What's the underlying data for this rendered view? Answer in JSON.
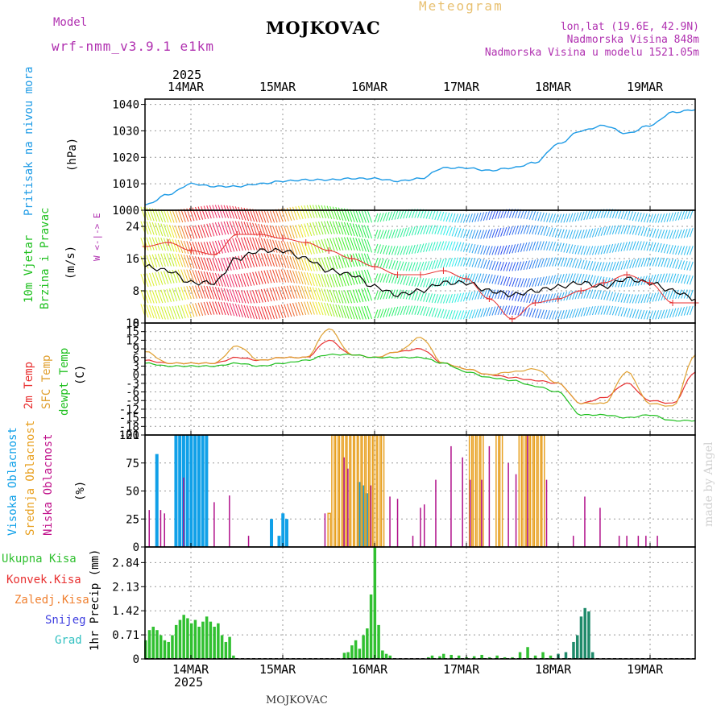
{
  "header": {
    "model_label": "Model",
    "model_name": "wrf-nmm_v3.9.1 e1km",
    "station": "MOJKOVAC",
    "product": "Meteogram",
    "lonlat": "lon,lat (19.6E, 42.9N)",
    "elevation": "Nadmorska Visina 848m",
    "model_elevation": "Nadmorska Visina u modelu 1521.05m",
    "footer_station": "MOJKOVAC",
    "credit": "made by Angel"
  },
  "colors": {
    "pressure": "#1e9be6",
    "temp2m": "#e83030",
    "sfc": "#e0a030",
    "dew": "#20c020",
    "high_cloud": "#10a0e8",
    "mid_cloud": "#e8a020",
    "low_cloud": "#b0108a",
    "precip": "#30c030",
    "title_magenta": "#b030b0"
  },
  "axes": {
    "year": "2025",
    "top_days": [
      "14MAR",
      "15MAR",
      "16MAR",
      "17MAR",
      "18MAR",
      "19MAR"
    ],
    "bottom_days": [
      "14MAR",
      "15MAR",
      "16MAR",
      "17MAR",
      "18MAR",
      "19MAR"
    ],
    "bottom_year": "2025"
  },
  "panels": {
    "pressure": {
      "label": "Pritisak na nivou mora",
      "unit": "(hPa)",
      "ticks": [
        "1040",
        "1030",
        "1020",
        "1010",
        "1000"
      ]
    },
    "wind": {
      "label1": "10m Vjetar",
      "label2": "Brzina i Pravac",
      "unit": "(m/s)",
      "ticks": [
        "24",
        "16",
        "8",
        "0"
      ],
      "compass": "W <-|-> E"
    },
    "temp": {
      "label_2m": "2m Temp",
      "label_sfc": "SFC Temp",
      "label_dew": "dewpt Temp",
      "unit": "(C)",
      "ticks": [
        "18",
        "15",
        "12",
        "9",
        "6",
        "3",
        "0",
        "-3",
        "-6",
        "-9",
        "-12",
        "-15",
        "-18",
        "-21"
      ]
    },
    "cloud": {
      "label_high": "Visoka Oblacnost",
      "label_mid": "Srednja Oblacnost",
      "label_low": "Niska Oblacnost",
      "unit": "(%)",
      "ticks": [
        "100",
        "75",
        "50",
        "25",
        "0"
      ]
    },
    "precip": {
      "legend": [
        "Ukupna Kisa",
        "Konvek.Kisa",
        "Zaledj.Kisa",
        "Snijeg",
        "Grad"
      ],
      "legend_colors": [
        "#30c030",
        "#e83030",
        "#f08030",
        "#4040e0",
        "#30c0c0"
      ],
      "unit": "1hr Precip (mm)",
      "ticks": [
        "2.84",
        "2.13",
        "1.42",
        "0.71",
        "0"
      ]
    }
  },
  "chart_data": [
    {
      "type": "line",
      "ylabel": "Pritisak na nivou mora (hPa)",
      "ylim": [
        1000,
        1042
      ],
      "x_hours": [
        0,
        6,
        12,
        18,
        24,
        30,
        36,
        42,
        48,
        54,
        60,
        66,
        72,
        78,
        84,
        90,
        96,
        102,
        108,
        114,
        120,
        126,
        132,
        138,
        144
      ],
      "series": [
        {
          "values": [
            1002,
            1006,
            1010,
            1009,
            1009,
            1010,
            1011,
            1011.5,
            1011.5,
            1012,
            1012,
            1011,
            1012,
            1016,
            1016,
            1015,
            1016,
            1018,
            1025,
            1030,
            1032,
            1029,
            1032,
            1037,
            1038
          ]
        }
      ]
    },
    {
      "type": "line",
      "ylabel": "10m Vjetar Brzina i Pravac (m/s)",
      "ylim": [
        0,
        28
      ],
      "x_hours": [
        0,
        6,
        12,
        18,
        24,
        30,
        36,
        42,
        48,
        54,
        60,
        66,
        72,
        78,
        84,
        90,
        96,
        102,
        108,
        114,
        120,
        126,
        132,
        138,
        144
      ],
      "series": [
        {
          "values": [
            14,
            13,
            10,
            10,
            16,
            18,
            18,
            16,
            13,
            12,
            9,
            7,
            8,
            10,
            10,
            8,
            7,
            8,
            9,
            10,
            9,
            11,
            10,
            8,
            6
          ]
        },
        {
          "values": [
            19,
            20,
            18,
            17,
            22,
            22,
            21,
            20,
            18,
            16,
            14,
            12,
            12,
            13,
            11,
            6,
            1,
            5,
            6,
            8,
            10,
            12,
            10,
            5,
            5
          ]
        }
      ]
    },
    {
      "type": "line",
      "ylabel": "(C)",
      "ylim": [
        -21,
        18
      ],
      "x_hours": [
        0,
        6,
        12,
        18,
        24,
        30,
        36,
        42,
        48,
        54,
        60,
        66,
        72,
        78,
        84,
        90,
        96,
        102,
        108,
        114,
        120,
        126,
        132,
        138,
        144
      ],
      "series": [
        {
          "name": "2m Temp",
          "values": [
            5,
            4,
            4,
            4,
            6,
            5,
            6,
            6,
            12,
            7,
            6,
            8,
            9,
            4,
            2,
            0,
            -1,
            -2,
            -3,
            -10,
            -8,
            -3,
            -9,
            -10,
            1
          ]
        },
        {
          "name": "SFC Temp",
          "values": [
            8,
            4,
            4,
            4,
            10,
            5,
            6,
            6,
            16,
            7,
            6,
            8,
            13,
            4,
            2,
            0,
            1,
            2,
            -3,
            -10,
            -10,
            1,
            -10,
            -11,
            7
          ]
        },
        {
          "name": "dewpt Temp",
          "values": [
            4,
            3,
            3,
            3,
            4,
            3,
            4,
            5,
            7,
            7,
            6,
            6,
            6,
            4,
            1,
            -1,
            -2,
            -4,
            -6,
            -14,
            -14,
            -15,
            -14,
            -16,
            -16
          ]
        }
      ]
    },
    {
      "type": "bar",
      "ylabel": "(%)",
      "ylim": [
        0,
        100
      ],
      "series": [
        {
          "name": "Visoka Oblacnost",
          "x_hours": [
            3,
            8,
            9,
            10,
            11,
            12,
            13,
            14,
            15,
            16,
            33,
            35,
            36,
            37,
            56,
            57,
            58
          ],
          "values": [
            83,
            100,
            100,
            100,
            100,
            100,
            100,
            100,
            100,
            100,
            25,
            10,
            30,
            25,
            58,
            55,
            48
          ]
        },
        {
          "name": "Srednja Oblacnost",
          "x_hours": [
            48,
            49,
            50,
            51,
            52,
            53,
            54,
            55,
            56,
            57,
            58,
            59,
            60,
            61,
            62,
            85,
            86,
            87,
            88,
            92,
            93,
            98,
            99,
            100,
            101,
            102,
            103,
            104
          ],
          "values": [
            30,
            100,
            100,
            100,
            100,
            100,
            100,
            100,
            100,
            100,
            100,
            100,
            100,
            100,
            100,
            100,
            100,
            100,
            100,
            100,
            100,
            100,
            100,
            100,
            100,
            100,
            100,
            100
          ]
        },
        {
          "name": "Niska Oblacnost",
          "x_hours": [
            1,
            4,
            5,
            10,
            18,
            22,
            27,
            47,
            52,
            53,
            59,
            64,
            66,
            70,
            72,
            73,
            76,
            80,
            83,
            85,
            88,
            90,
            95,
            97,
            100,
            105,
            112,
            115,
            119,
            124,
            126,
            129,
            131,
            134
          ],
          "values": [
            33,
            33,
            30,
            62,
            40,
            46,
            10,
            30,
            80,
            70,
            55,
            45,
            43,
            10,
            35,
            38,
            60,
            90,
            80,
            60,
            60,
            90,
            75,
            65,
            100,
            60,
            10,
            45,
            35,
            10,
            10,
            10,
            10,
            10
          ]
        }
      ]
    },
    {
      "type": "bar",
      "ylabel": "1hr Precip (mm)",
      "ylim": [
        0,
        3.3
      ],
      "series": [
        {
          "name": "Ukupna Kisa",
          "x_hours": [
            0,
            1,
            2,
            3,
            4,
            5,
            6,
            7,
            8,
            9,
            10,
            11,
            12,
            13,
            14,
            15,
            16,
            17,
            18,
            19,
            20,
            21,
            22,
            23,
            52,
            53,
            54,
            55,
            56,
            57,
            58,
            59,
            60,
            61,
            62,
            63,
            64,
            74,
            75,
            77,
            78,
            80,
            82,
            84,
            86,
            88,
            90,
            92,
            94,
            96,
            98,
            100,
            102,
            104,
            106,
            108,
            110,
            112,
            113,
            114,
            115,
            116,
            117
          ],
          "values": [
            0.55,
            0.85,
            0.95,
            0.85,
            0.7,
            0.55,
            0.5,
            0.7,
            1.0,
            1.15,
            1.3,
            1.2,
            1.05,
            1.15,
            0.95,
            1.1,
            1.25,
            1.1,
            0.95,
            1.05,
            0.7,
            0.5,
            0.65,
            0.1,
            0.18,
            0.2,
            0.4,
            0.55,
            0.3,
            0.7,
            0.9,
            1.9,
            3.3,
            1.0,
            0.25,
            0.15,
            0.1,
            0.05,
            0.1,
            0.08,
            0.15,
            0.12,
            0.1,
            0.05,
            0.08,
            0.12,
            0.05,
            0.1,
            0.05,
            0.05,
            0.2,
            0.35,
            0.1,
            0.2,
            0.1,
            0.15,
            0.2,
            0.5,
            0.7,
            1.25,
            1.5,
            1.4,
            0.2
          ]
        }
      ]
    }
  ]
}
